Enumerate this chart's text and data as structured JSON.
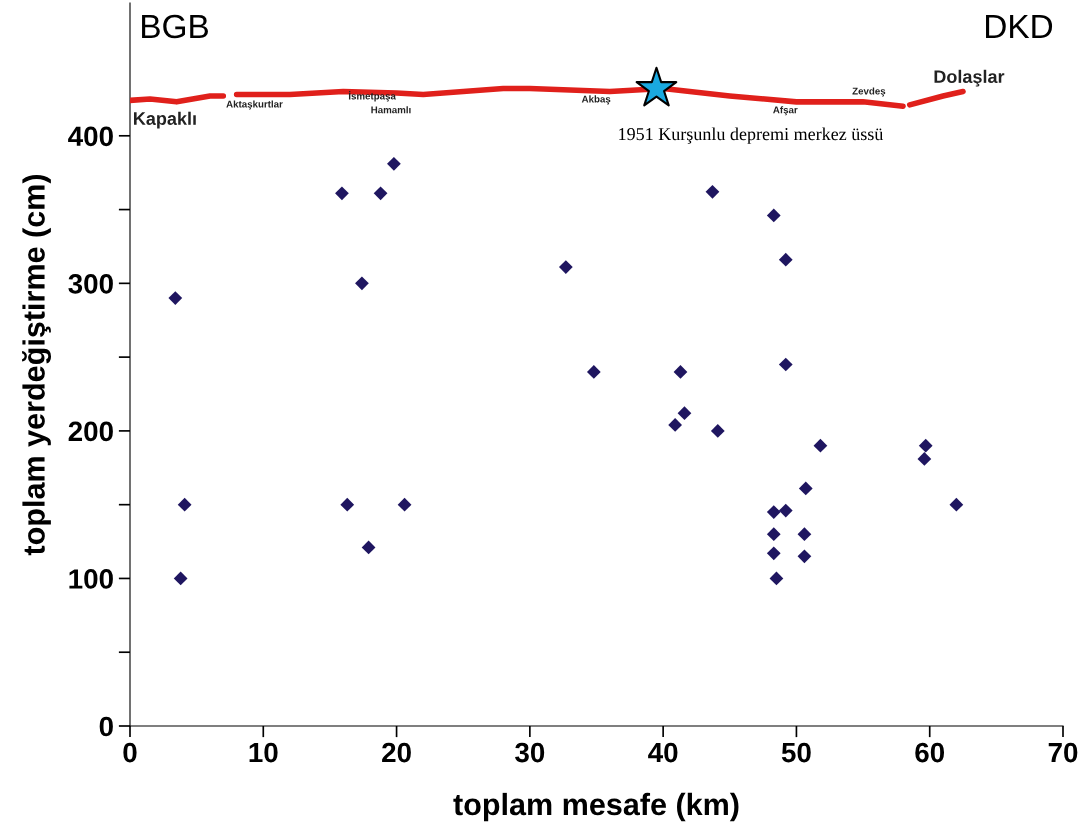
{
  "chart_data": {
    "type": "scatter",
    "xlabel": "toplam mesafe (km)",
    "ylabel": "toplam yerdeğiştirme (cm)",
    "xlim": [
      0,
      70
    ],
    "ylim": [
      0,
      490
    ],
    "xticks": [
      0,
      10,
      20,
      30,
      40,
      50,
      60,
      70
    ],
    "yticks": [
      0,
      {
        "value": 50,
        "label": null
      },
      100,
      {
        "value": 150,
        "label": null
      },
      200,
      {
        "value": 250,
        "label": null
      },
      300,
      {
        "value": 350,
        "label": null
      },
      400
    ],
    "grid": false,
    "legend": false,
    "marker": "diamond",
    "series": [
      {
        "color": "#1f1660",
        "x": [
          3.4,
          4.1,
          3.8,
          15.9,
          17.4,
          18.8,
          19.8,
          16.3,
          20.6,
          17.9,
          32.7,
          34.8,
          43.7,
          41.3,
          41.6,
          40.9,
          44.1,
          48.3,
          49.2,
          49.2,
          51.8,
          59.7,
          59.6,
          62.0,
          50.7,
          48.3,
          49.2,
          48.3,
          50.6,
          48.3,
          50.6,
          48.5
        ],
        "values": [
          290,
          150,
          100,
          361,
          300,
          361,
          381,
          150,
          150,
          121,
          311,
          240,
          362,
          240,
          212,
          204,
          200,
          346,
          316,
          245,
          190,
          190,
          181,
          150,
          161,
          145,
          146,
          130,
          130,
          117,
          115,
          100
        ]
      },
      {
        "type": "line",
        "color": "#e0201b",
        "marker": "none",
        "line_style": "solid",
        "x": [
          0,
          1.5,
          3.5,
          6,
          7,
          7.5,
          8,
          12,
          16,
          20,
          22,
          28,
          30,
          36,
          40,
          45,
          50,
          55,
          58,
          58.2,
          58.5,
          61,
          62.5
        ],
        "values": [
          424,
          425,
          423,
          427,
          427,
          null,
          428,
          428,
          430,
          429,
          428,
          432,
          432,
          430,
          432,
          427,
          423,
          423,
          420,
          null,
          421,
          427,
          430
        ]
      },
      {
        "type": "scatter",
        "color": "#1aa9e0",
        "marker": "star",
        "x": [
          39.5
        ],
        "values": [
          432
        ]
      }
    ],
    "annotations": [
      "BGB",
      "DKD",
      "Kapaklı",
      "Aktaşkurtlar",
      "İsmetpaşa",
      "Hamamlı",
      "Akbaş",
      "Afşar",
      "Zevdeş",
      "Dolaşlar",
      {
        "text": "1951 Kurşunlu depremi merkez üssü",
        "x": 39.5,
        "y": 432
      }
    ]
  }
}
